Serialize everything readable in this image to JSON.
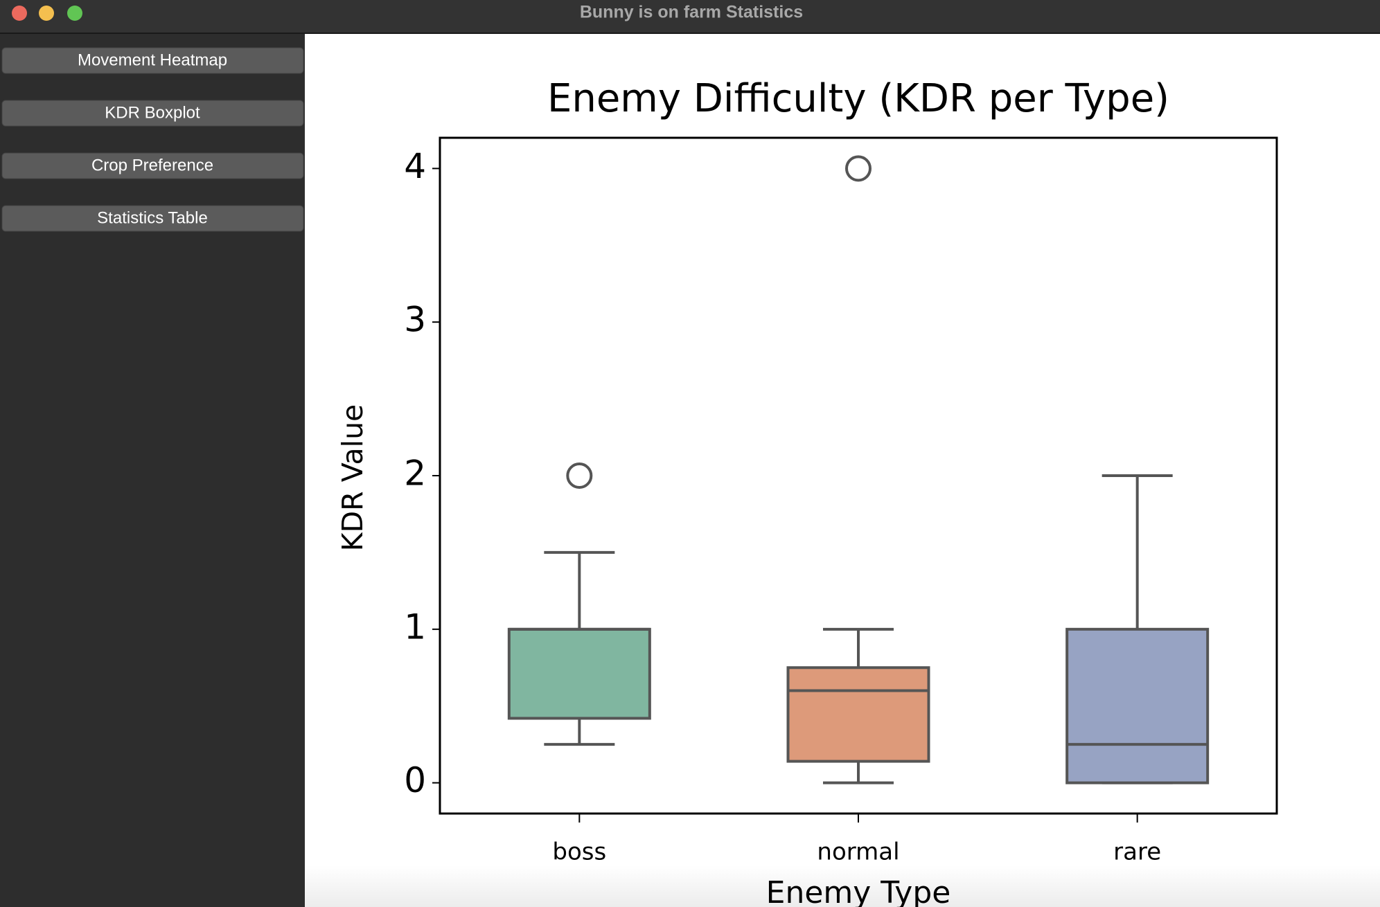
{
  "window": {
    "title": "Bunny is on farm Statistics"
  },
  "sidebar": {
    "buttons": [
      "Movement Heatmap",
      "KDR Boxplot",
      "Crop Preference",
      "Statistics Table"
    ]
  },
  "chart_data": {
    "type": "box",
    "title": "Enemy Difficulty (KDR per Type)",
    "x_label": "Enemy Type",
    "y_label": "KDR Value",
    "categories": [
      "boss",
      "normal",
      "rare"
    ],
    "colors": [
      "#80b6a0",
      "#dd9a7a",
      "#97a3c3"
    ],
    "boxes": [
      {
        "whisker_low": 0.25,
        "q1": 0.42,
        "median": 1.0,
        "q3": 1.0,
        "whisker_high": 1.5,
        "outliers": [
          2.0
        ]
      },
      {
        "whisker_low": 0,
        "q1": 0.14,
        "median": 0.6,
        "q3": 0.75,
        "whisker_high": 1.0,
        "outliers": [
          4.0
        ]
      },
      {
        "whisker_low": 0,
        "q1": 0,
        "median": 0.25,
        "q3": 1.0,
        "whisker_high": 2.0,
        "outliers": []
      }
    ],
    "ylim": [
      -0.2,
      4.2
    ],
    "yticks": [
      0,
      1,
      2,
      3,
      4
    ]
  }
}
